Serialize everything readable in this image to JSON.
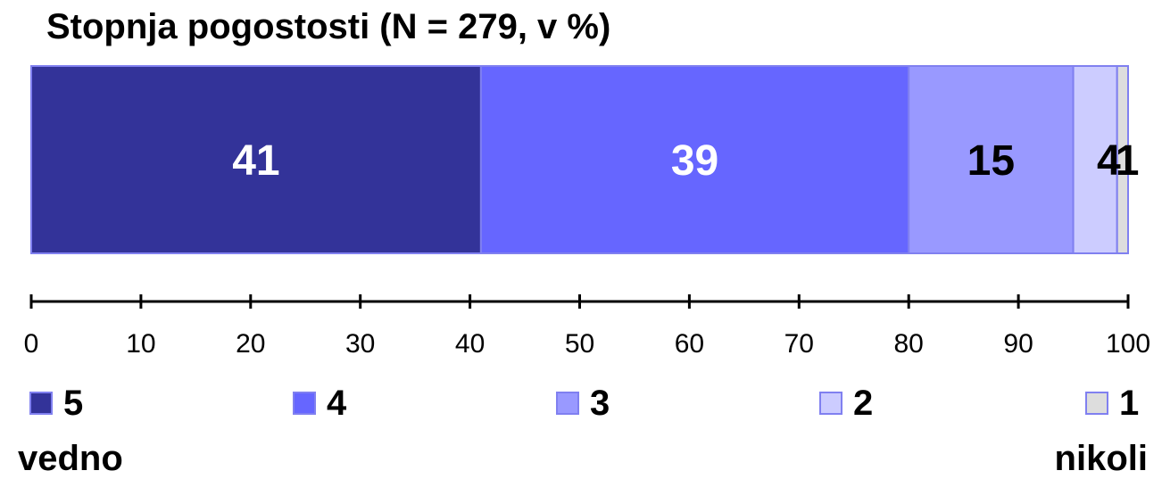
{
  "chart_data": {
    "type": "bar",
    "orientation": "horizontal-stacked",
    "title": "Stopnja pogostosti (N = 279, v %)",
    "xlim": [
      0,
      100
    ],
    "x_ticks": [
      "0",
      "10",
      "20",
      "30",
      "40",
      "50",
      "60",
      "70",
      "80",
      "90",
      "100"
    ],
    "series": [
      {
        "name": "5",
        "value": 41,
        "label": "41",
        "color": "#333399",
        "label_color": "#ffffff"
      },
      {
        "name": "4",
        "value": 39,
        "label": "39",
        "color": "#6666ff",
        "label_color": "#ffffff"
      },
      {
        "name": "3",
        "value": 15,
        "label": "15",
        "color": "#9999ff",
        "label_color": "#000000"
      },
      {
        "name": "2",
        "value": 4,
        "label": "4",
        "color": "#ccccff",
        "label_color": "#000000"
      },
      {
        "name": "1",
        "value": 1,
        "label": "1",
        "color": "#dddddd",
        "label_color": "#000000"
      }
    ],
    "legend": {
      "placement": "bottom",
      "items": [
        "5",
        "4",
        "3",
        "2",
        "1"
      ],
      "start_label": "vedno",
      "end_label": "nikoli"
    }
  }
}
